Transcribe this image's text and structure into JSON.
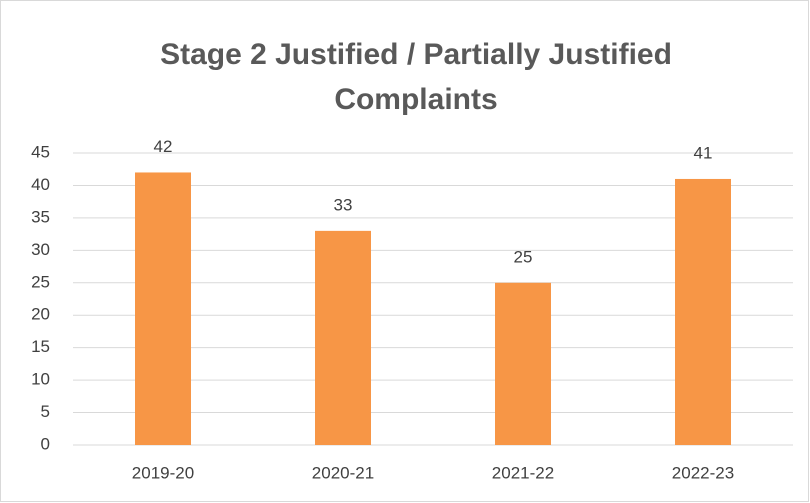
{
  "chart_data": {
    "type": "bar",
    "title": "Stage 2 Justified / Partially Justified Complaints",
    "categories": [
      "2019-20",
      "2020-21",
      "2021-22",
      "2022-23"
    ],
    "values": [
      42,
      33,
      25,
      41
    ],
    "color": "#f79646",
    "ylim": [
      0,
      45
    ],
    "yticks": [
      0,
      5,
      10,
      15,
      20,
      25,
      30,
      35,
      40,
      45
    ],
    "grid": true
  }
}
